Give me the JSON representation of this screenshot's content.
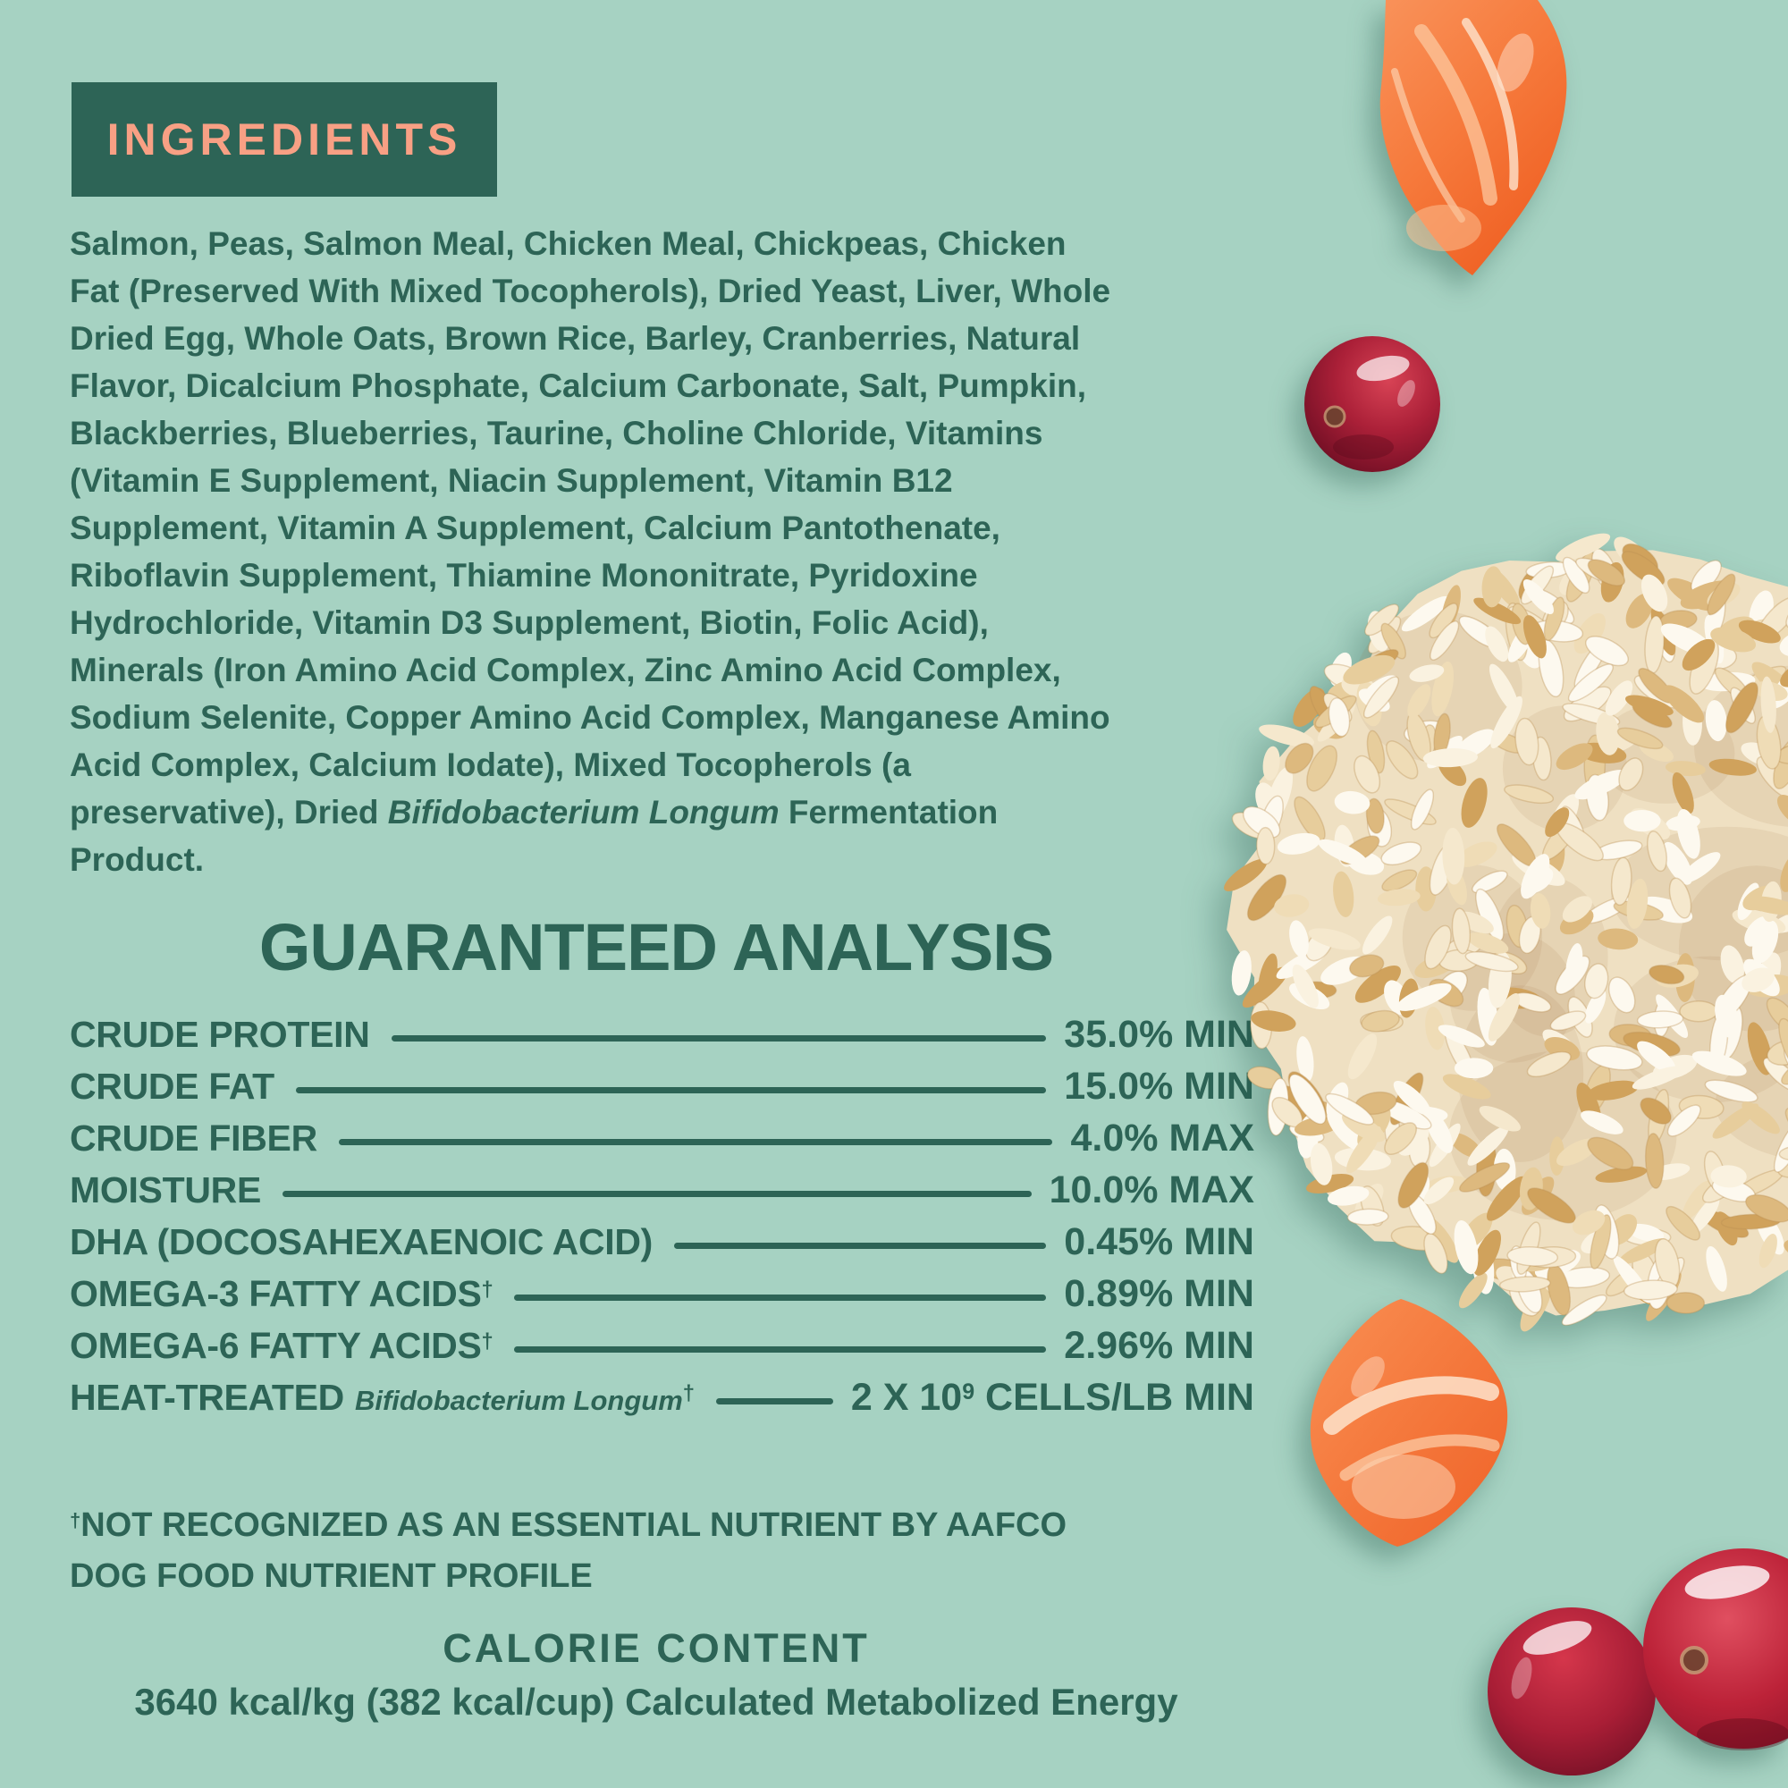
{
  "page": {
    "background_color": "#a6d2c2",
    "text_color": "#2d6456",
    "accent_color": "#f8a084"
  },
  "ingredients": {
    "title": "INGREDIENTS",
    "text_before_italic": "Salmon, Peas, Salmon Meal, Chicken Meal, Chickpeas, Chicken Fat (Preserved With Mixed Tocopherols), Dried Yeast, Liver, Whole Dried Egg, Whole Oats, Brown Rice, Barley, Cranberries, Natural Flavor, Dicalcium Phosphate, Calcium Carbonate, Salt, Pumpkin, Blackberries, Blueberries, Taurine, Choline Chloride, Vitamins (Vitamin E Supplement, Niacin Supplement, Vitamin B12 Supplement, Vitamin A Supplement, Calcium Pantothenate, Riboflavin Supplement, Thiamine Mononitrate, Pyridoxine Hydrochloride, Vitamin D3 Supplement, Biotin, Folic Acid), Minerals (Iron Amino Acid Complex, Zinc Amino Acid Complex, Sodium Selenite, Copper Amino Acid Complex, Manganese Amino Acid Complex, Calcium Iodate), Mixed Tocopherols (a preservative), Dried ",
    "text_italic": "Bifidobacterium Longum",
    "text_after_italic": " Fermentation Product."
  },
  "analysis": {
    "title": "GUARANTEED ANALYSIS",
    "rows": [
      {
        "label": "CRUDE PROTEIN",
        "value_pre": "35.0% MIN"
      },
      {
        "label": "CRUDE FAT",
        "value_pre": "15.0% MIN"
      },
      {
        "label": "CRUDE FIBER",
        "value_pre": "4.0% MAX"
      },
      {
        "label": "MOISTURE",
        "value_pre": "10.0% MAX"
      },
      {
        "label": "DHA (DOCOSAHEXAENOIC ACID)",
        "value_pre": "0.45% MIN"
      },
      {
        "label": "OMEGA-3 FATTY ACIDS",
        "label_sup": "†",
        "value_pre": "0.89% MIN"
      },
      {
        "label": "OMEGA-6 FATTY ACIDS",
        "label_sup": "†",
        "value_pre": "2.96% MIN"
      },
      {
        "label": "HEAT-TREATED",
        "label_italic": "Bifidobacterium Longum",
        "italic_sup": "†",
        "value_pre": "2 X 10",
        "value_sup": "9",
        "value_post": " CELLS/LB MIN"
      }
    ],
    "footnote_sup": "†",
    "footnote_lines": [
      "NOT RECOGNIZED AS AN ESSENTIAL NUTRIENT BY AAFCO",
      "DOG FOOD NUTRIENT PROFILE"
    ]
  },
  "calories": {
    "title": "CALORIE CONTENT",
    "text": "3640 kcal/kg (382 kcal/cup) Calculated Metabolized Energy"
  },
  "images": {
    "salmon_top": "salmon fillet piece",
    "cranberry": "cranberry",
    "rice": "pile of cooked brown rice",
    "salmon_bottom": "salmon fillet piece",
    "cranberries_bottom": "two cranberries"
  }
}
